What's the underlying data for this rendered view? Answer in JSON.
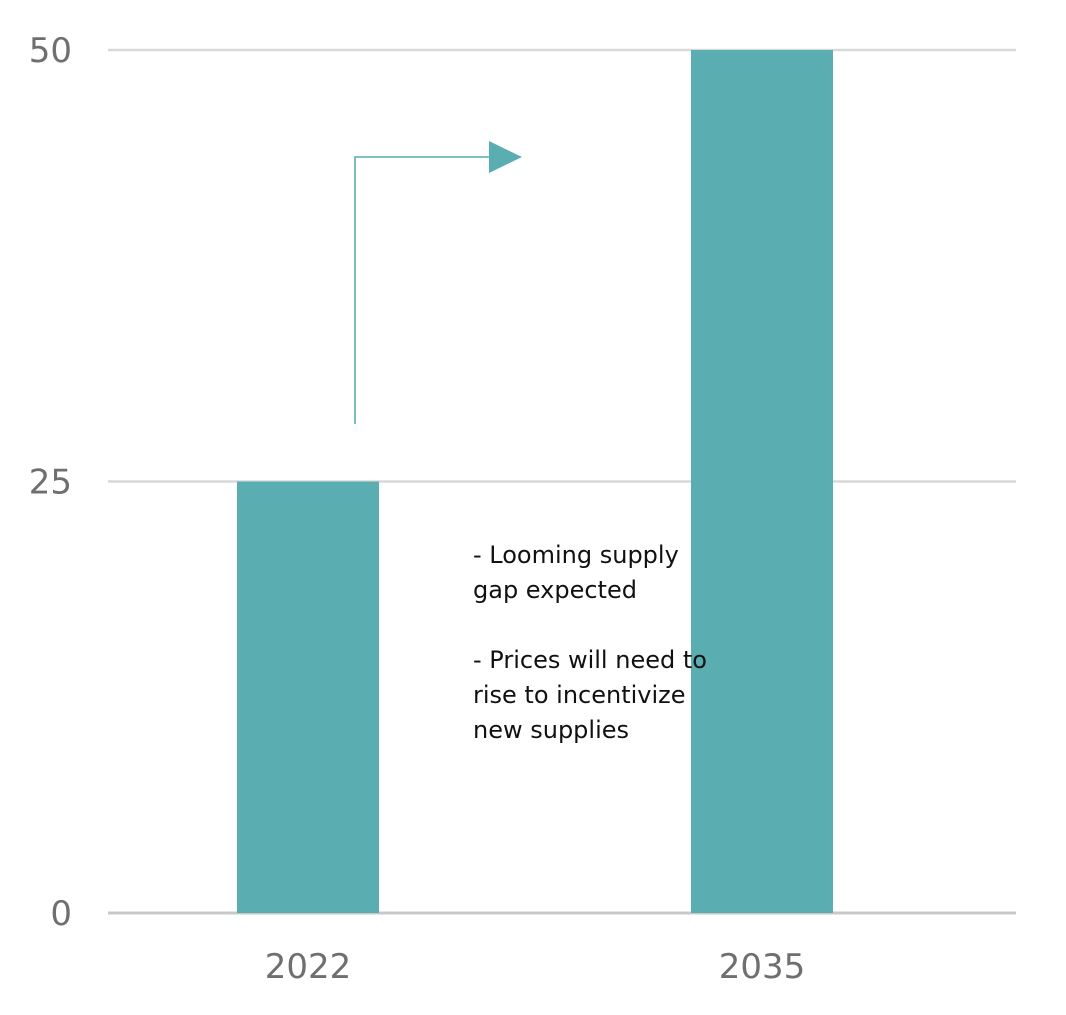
{
  "chart_data": {
    "type": "bar",
    "categories": [
      "2022",
      "2035"
    ],
    "values": [
      25,
      50
    ],
    "ylim": [
      0,
      50
    ],
    "yticks": [
      0,
      25,
      50
    ],
    "grid": true,
    "colors": {
      "bar": "#5aadb0",
      "arrow": "#5aadb0",
      "grid": "#d9d9d9",
      "tick_text": "#6f6f6f"
    },
    "annotations": [
      "- Looming supply gap expected",
      "- Prices will need to rise to incentivize new supplies"
    ],
    "arrow_icon": "step-up-arrow-icon"
  }
}
